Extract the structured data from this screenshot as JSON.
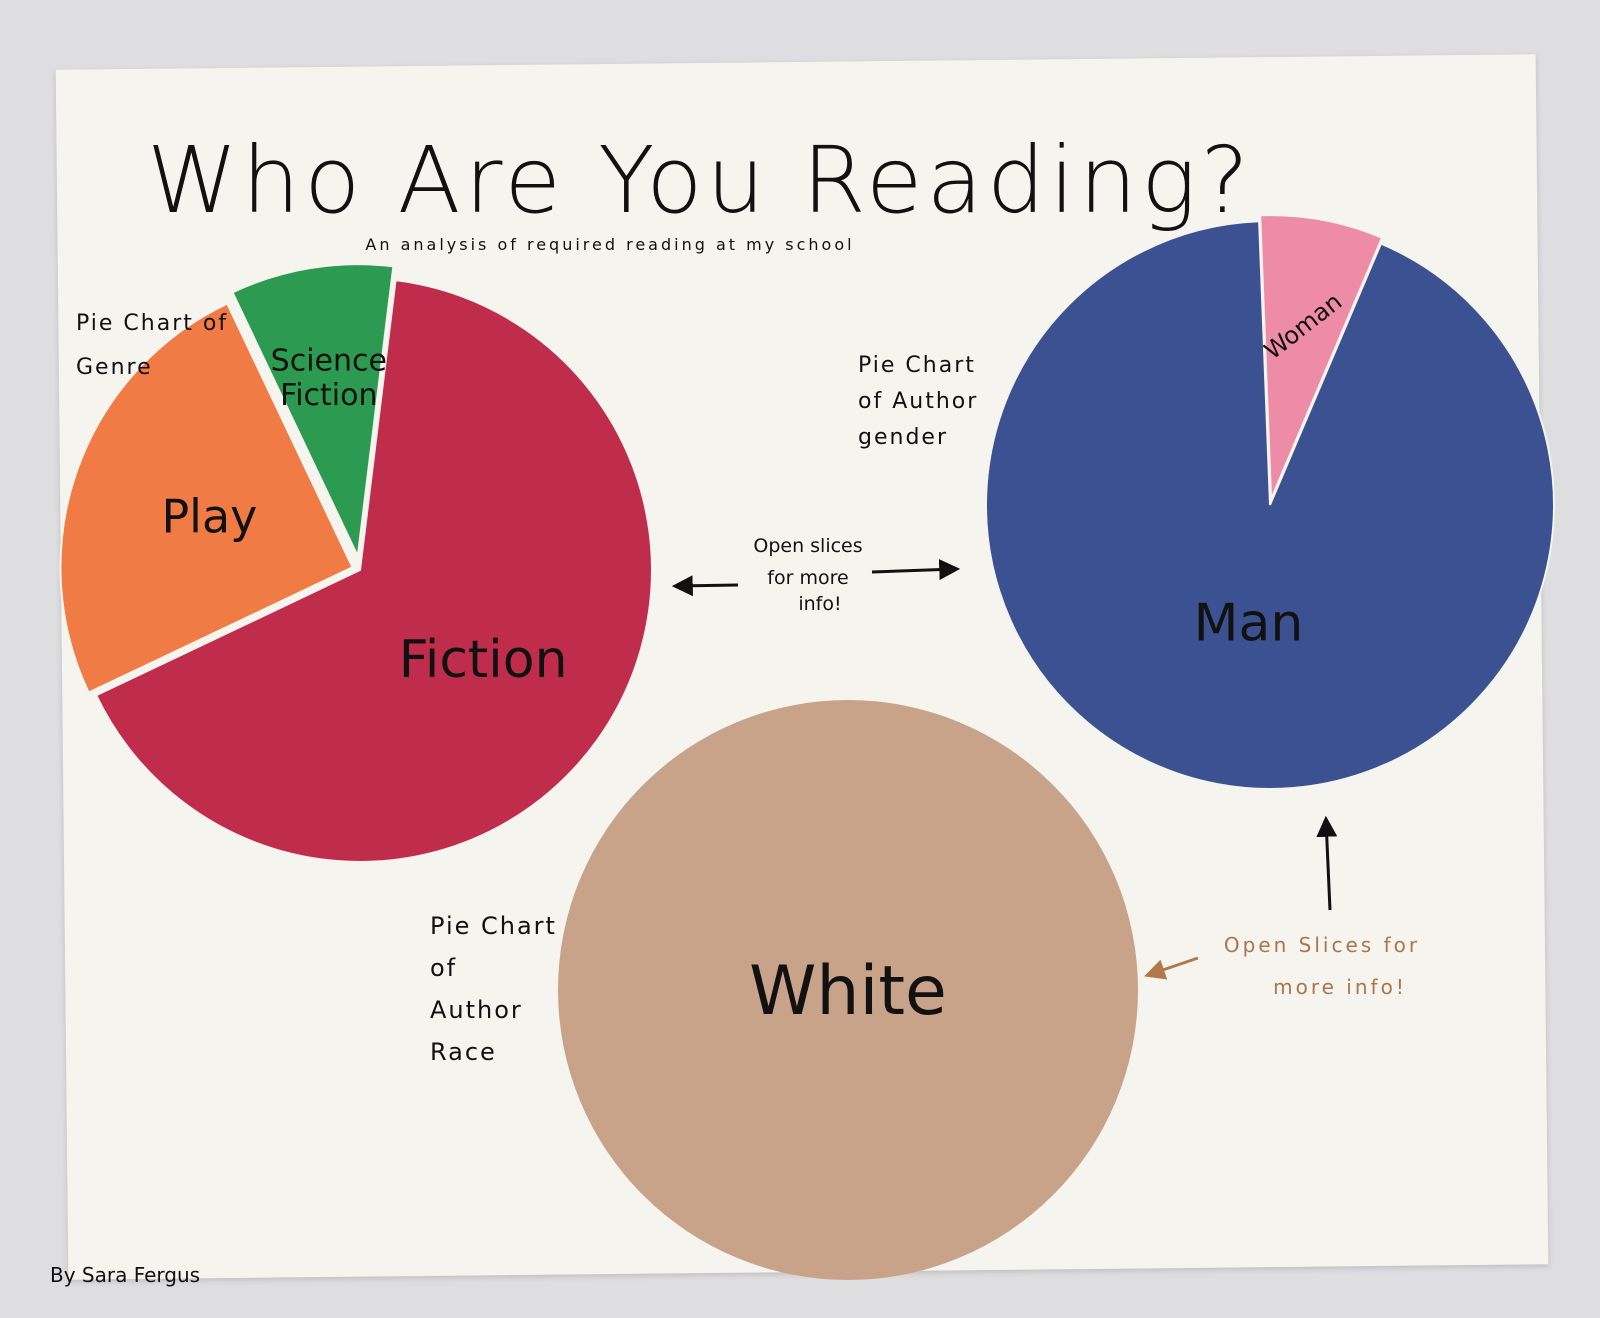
{
  "poster": {
    "title": "Who Are You Reading?",
    "subtitle": "An analysis of required reading at my school",
    "author": "By Sara Fergus",
    "note_left": [
      "Open slices",
      "for more",
      "info!"
    ],
    "note_right": [
      "Open Slices for",
      "more info!"
    ]
  },
  "chart_data": [
    {
      "type": "pie",
      "title": [
        "Pie Chart of",
        "Genre"
      ],
      "slices": [
        {
          "label": "Fiction",
          "label_lines": [
            "Fiction"
          ],
          "value": 0.66,
          "color": "#c02d4c"
        },
        {
          "label": "Play",
          "label_lines": [
            "Play"
          ],
          "value": 0.25,
          "color": "#f07b45"
        },
        {
          "label": "Science Fiction",
          "label_lines": [
            "Science",
            "Fiction"
          ],
          "value": 0.09,
          "color": "#2d9a52"
        }
      ]
    },
    {
      "type": "pie",
      "title": [
        "Pie Chart",
        "of Author",
        "gender"
      ],
      "slices": [
        {
          "label": "Man",
          "label_lines": [
            "Man"
          ],
          "value": 0.93,
          "color": "#3b5191"
        },
        {
          "label": "Woman",
          "label_lines": [
            "Woman"
          ],
          "value": 0.07,
          "color": "#ee8ba6"
        }
      ]
    },
    {
      "type": "pie",
      "title": [
        "Pie Chart",
        "of",
        "Author",
        "Race"
      ],
      "slices": [
        {
          "label": "White",
          "label_lines": [
            "White"
          ],
          "value": 1.0,
          "color": "#c9a28a"
        }
      ]
    }
  ]
}
